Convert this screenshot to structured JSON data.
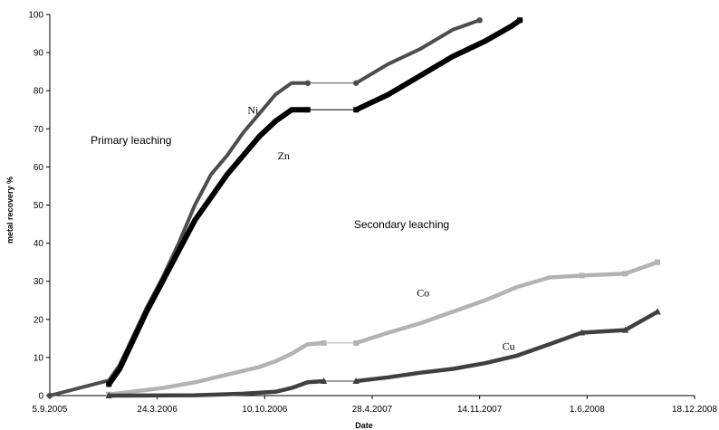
{
  "chart_data": {
    "type": "line",
    "xlabel": "Date",
    "ylabel": "metal recovery %",
    "ylim": [
      0,
      100
    ],
    "y_ticks": [
      0,
      10,
      20,
      30,
      40,
      50,
      60,
      70,
      80,
      90,
      100
    ],
    "x_ticks": [
      "5.9.2005",
      "24.3.2006",
      "10.10.2006",
      "28.4.2007",
      "14.11.2007",
      "1.6.2008",
      "18.12.2008"
    ],
    "x_tick_values": [
      "2005-09-05",
      "2006-03-24",
      "2006-10-10",
      "2007-04-28",
      "2007-11-14",
      "2008-06-01",
      "2008-12-18"
    ],
    "xlim": [
      "2005-09-05",
      "2008-12-18"
    ],
    "grid": false,
    "legend": "none",
    "annotations": [
      {
        "text": "Primary leaching",
        "x": "2005-11-20",
        "y": 66,
        "style": "sans"
      },
      {
        "text": "Secondary leaching",
        "x": "2007-03-25",
        "y": 44,
        "style": "sans"
      },
      {
        "text": "Ni",
        "x": "2006-09-08",
        "y": 74,
        "style": "serif"
      },
      {
        "text": "Zn",
        "x": "2006-11-03",
        "y": 62,
        "style": "serif"
      },
      {
        "text": "Co",
        "x": "2007-07-20",
        "y": 26,
        "style": "serif"
      },
      {
        "text": "Cu",
        "x": "2007-12-26",
        "y": 12,
        "style": "serif"
      }
    ],
    "series": [
      {
        "name": "Ni",
        "color": "#4d4d4d",
        "points": [
          [
            "2005-09-05",
            0
          ],
          [
            "2005-12-24",
            4
          ],
          [
            "2006-01-13",
            8
          ],
          [
            "2006-02-02",
            14
          ],
          [
            "2006-03-04",
            23
          ],
          [
            "2006-04-03",
            31
          ],
          [
            "2006-05-03",
            40
          ],
          [
            "2006-06-02",
            50
          ],
          [
            "2006-07-02",
            58
          ],
          [
            "2006-08-01",
            63
          ],
          [
            "2006-08-31",
            69
          ],
          [
            "2006-09-30",
            74
          ],
          [
            "2006-10-30",
            79
          ],
          [
            "2006-11-29",
            82
          ],
          [
            "2006-12-29",
            82
          ]
        ],
        "points_after_gap": [
          [
            "2007-03-29",
            82
          ],
          [
            "2007-05-28",
            87
          ],
          [
            "2007-07-27",
            91
          ],
          [
            "2007-09-25",
            96
          ],
          [
            "2007-11-14",
            98.5
          ]
        ],
        "marker": "circle"
      },
      {
        "name": "Zn",
        "color": "#000000",
        "points": [
          [
            "2005-12-24",
            3
          ],
          [
            "2006-01-13",
            7
          ],
          [
            "2006-02-02",
            13
          ],
          [
            "2006-03-04",
            22
          ],
          [
            "2006-04-03",
            30
          ],
          [
            "2006-05-03",
            38
          ],
          [
            "2006-06-02",
            46
          ],
          [
            "2006-07-02",
            52
          ],
          [
            "2006-08-01",
            58
          ],
          [
            "2006-08-31",
            63
          ],
          [
            "2006-09-30",
            68
          ],
          [
            "2006-10-30",
            72
          ],
          [
            "2006-11-29",
            75
          ],
          [
            "2006-12-29",
            75
          ]
        ],
        "points_after_gap": [
          [
            "2007-03-29",
            75
          ],
          [
            "2007-05-28",
            79
          ],
          [
            "2007-07-27",
            84
          ],
          [
            "2007-09-25",
            89
          ],
          [
            "2007-11-24",
            93
          ],
          [
            "2008-01-13",
            97
          ],
          [
            "2008-01-28",
            98.5
          ]
        ],
        "marker": "square"
      },
      {
        "name": "Co",
        "color": "#b3b3b3",
        "points": [
          [
            "2005-12-24",
            0.3
          ],
          [
            "2006-02-02",
            1
          ],
          [
            "2006-04-03",
            2
          ],
          [
            "2006-06-02",
            3.5
          ],
          [
            "2006-08-01",
            5.5
          ],
          [
            "2006-09-30",
            7.5
          ],
          [
            "2006-10-30",
            9
          ],
          [
            "2006-11-29",
            11
          ],
          [
            "2006-12-29",
            13.5
          ],
          [
            "2007-01-28",
            13.8
          ]
        ],
        "points_after_gap": [
          [
            "2007-03-29",
            13.8
          ],
          [
            "2007-05-28",
            16.5
          ],
          [
            "2007-07-27",
            19
          ],
          [
            "2007-09-25",
            22
          ],
          [
            "2007-11-24",
            25
          ],
          [
            "2008-01-23",
            28.5
          ],
          [
            "2008-03-23",
            31
          ],
          [
            "2008-05-22",
            31.5
          ],
          [
            "2008-08-11",
            32
          ],
          [
            "2008-10-10",
            35
          ]
        ],
        "marker": "square"
      },
      {
        "name": "Cu",
        "color": "#404040",
        "points": [
          [
            "2005-12-24",
            0
          ],
          [
            "2006-06-02",
            0.1
          ],
          [
            "2006-08-31",
            0.5
          ],
          [
            "2006-10-30",
            1
          ],
          [
            "2006-11-29",
            2
          ],
          [
            "2006-12-29",
            3.5
          ],
          [
            "2007-01-28",
            3.8
          ]
        ],
        "points_after_gap": [
          [
            "2007-03-29",
            3.8
          ],
          [
            "2007-05-28",
            4.8
          ],
          [
            "2007-07-27",
            6
          ],
          [
            "2007-09-25",
            7
          ],
          [
            "2007-11-24",
            8.5
          ],
          [
            "2008-01-23",
            10.5
          ],
          [
            "2008-03-23",
            13.5
          ],
          [
            "2008-05-22",
            16.5
          ],
          [
            "2008-08-11",
            17.2
          ],
          [
            "2008-10-10",
            22
          ]
        ],
        "marker": "triangle"
      }
    ]
  }
}
